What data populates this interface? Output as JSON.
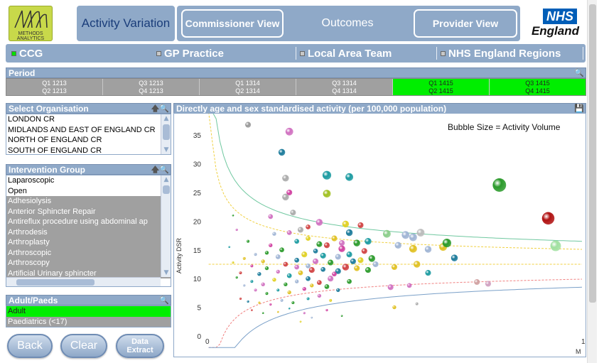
{
  "header": {
    "logo_line1": "METHODS",
    "logo_line2": "ANALYTICS",
    "activity_variation": "Activity Variation",
    "commissioner_view": "Commissioner View",
    "outcomes": "Outcomes",
    "provider_view": "Provider View",
    "nhs": "NHS",
    "england": "England"
  },
  "levels": [
    {
      "label": "CCG",
      "selected": true
    },
    {
      "label": "GP Practice",
      "selected": false
    },
    {
      "label": "Local Area Team",
      "selected": false
    },
    {
      "label": "NHS England Regions",
      "selected": false
    }
  ],
  "period": {
    "title": "Period",
    "cells": [
      {
        "line1": "Q1 1213",
        "line2": "Q2 1213",
        "selected": false
      },
      {
        "line1": "Q3 1213",
        "line2": "Q4 1213",
        "selected": false
      },
      {
        "line1": "Q1 1314",
        "line2": "Q2 1314",
        "selected": false
      },
      {
        "line1": "Q3 1314",
        "line2": "Q4 1314",
        "selected": false
      },
      {
        "line1": "Q1 1415",
        "line2": "Q2 1415",
        "selected": true
      },
      {
        "line1": "Q3 1415",
        "line2": "Q4 1415",
        "selected": true
      }
    ]
  },
  "organisation": {
    "title": "Select Organisation",
    "items": [
      "LONDON CR",
      "MIDLANDS AND EAST OF ENGLAND CR",
      "NORTH OF ENGLAND CR",
      "SOUTH OF ENGLAND CR"
    ]
  },
  "intervention": {
    "title": "Intervention Group",
    "items": [
      {
        "label": "Laparoscopic",
        "state": "white"
      },
      {
        "label": "Open",
        "state": "white"
      },
      {
        "label": "Adhesiolysis",
        "state": "grey"
      },
      {
        "label": "Anterior Sphincter Repair",
        "state": "grey"
      },
      {
        "label": "Antireflux procedure using abdominal ap",
        "state": "grey"
      },
      {
        "label": "Arthrodesis",
        "state": "grey"
      },
      {
        "label": "Arthroplasty",
        "state": "grey"
      },
      {
        "label": "Arthroscopic",
        "state": "grey"
      },
      {
        "label": "Arthroscopy",
        "state": "grey"
      },
      {
        "label": "Artificial Urinary sphincter",
        "state": "grey"
      }
    ]
  },
  "adultpaeds": {
    "title": "Adult/Paeds",
    "items": [
      {
        "label": "Adult",
        "state": "green"
      },
      {
        "label": "Paediatrics (<17)",
        "state": "grey"
      }
    ]
  },
  "buttons": {
    "back": "Back",
    "clear": "Clear",
    "data_extract_1": "Data",
    "data_extract_2": "Extract"
  },
  "chart": {
    "title": "Directly age and sex standardised activity (per 100,000 population)",
    "bubble_note": "Bubble Size = Activity Volume",
    "ylabel": "Activity DSR",
    "x_tick_0": "0",
    "x_tick_end": "1",
    "x_unit": "M"
  },
  "chart_data": {
    "type": "scatter",
    "ylim": [
      0,
      37
    ],
    "yticks": [
      0,
      5,
      10,
      15,
      20,
      25,
      30,
      35
    ],
    "mean": 12.5,
    "points": [
      {
        "x": 0.11,
        "y": 36.8,
        "s": 3,
        "c": "#999999"
      },
      {
        "x": 0.22,
        "y": 35.6,
        "s": 4,
        "c": "#d070c0"
      },
      {
        "x": 0.2,
        "y": 32.0,
        "s": 3.5,
        "c": "#1a7a9a"
      },
      {
        "x": 0.32,
        "y": 28.0,
        "s": 4.5,
        "c": "#1a9aa0"
      },
      {
        "x": 0.38,
        "y": 27.7,
        "s": 4,
        "c": "#1a9aa0"
      },
      {
        "x": 0.21,
        "y": 27.5,
        "s": 3.5,
        "c": "#aaaaaa"
      },
      {
        "x": 0.22,
        "y": 25.0,
        "s": 3,
        "c": "#d040a0"
      },
      {
        "x": 0.21,
        "y": 24.2,
        "s": 3.5,
        "c": "#aaaaaa"
      },
      {
        "x": 0.32,
        "y": 24.8,
        "s": 4,
        "c": "#a0c020"
      },
      {
        "x": 0.78,
        "y": 26.3,
        "s": 7,
        "c": "#2a9a2a"
      },
      {
        "x": 0.91,
        "y": 20.5,
        "s": 6.5,
        "c": "#b01010"
      },
      {
        "x": 0.23,
        "y": 21.5,
        "s": 3,
        "c": "#aaaaaa"
      },
      {
        "x": 0.17,
        "y": 20.8,
        "s": 2.5,
        "c": "#d070c0"
      },
      {
        "x": 0.3,
        "y": 19.8,
        "s": 3.5,
        "c": "#d070c0"
      },
      {
        "x": 0.37,
        "y": 19.5,
        "s": 3.5,
        "c": "#e0d020"
      },
      {
        "x": 0.41,
        "y": 19.3,
        "s": 3,
        "c": "#d04040"
      },
      {
        "x": 0.48,
        "y": 17.8,
        "s": 4,
        "c": "#8acd8a"
      },
      {
        "x": 0.53,
        "y": 17.6,
        "s": 4,
        "c": "#9fb4d4"
      },
      {
        "x": 0.55,
        "y": 17.2,
        "s": 4,
        "c": "#9fb4d4"
      },
      {
        "x": 0.57,
        "y": 18.0,
        "s": 4,
        "c": "#bbbbbb"
      },
      {
        "x": 0.51,
        "y": 15.8,
        "s": 3.5,
        "c": "#9fb4d4"
      },
      {
        "x": 0.55,
        "y": 15.2,
        "s": 4,
        "c": "#e0c020"
      },
      {
        "x": 0.59,
        "y": 15.1,
        "s": 3.5,
        "c": "#9fb4d4"
      },
      {
        "x": 0.63,
        "y": 15.5,
        "s": 4,
        "c": "#e0c020"
      },
      {
        "x": 0.64,
        "y": 16.2,
        "s": 4.5,
        "c": "#2a9a2a"
      },
      {
        "x": 0.66,
        "y": 13.6,
        "s": 3.5,
        "c": "#1a7a9a"
      },
      {
        "x": 0.93,
        "y": 15.7,
        "s": 5.5,
        "c": "#a0e0a0"
      },
      {
        "x": 0.5,
        "y": 12.0,
        "s": 3,
        "c": "#e0c020"
      },
      {
        "x": 0.56,
        "y": 12.5,
        "s": 3.5,
        "c": "#e0c020"
      },
      {
        "x": 0.59,
        "y": 11.0,
        "s": 3,
        "c": "#1a9aa0"
      },
      {
        "x": 0.72,
        "y": 9.4,
        "s": 3,
        "c": "#d0a0a0"
      },
      {
        "x": 0.75,
        "y": 9.1,
        "s": 3,
        "c": "#d0a0c0"
      },
      {
        "x": 0.49,
        "y": 8.5,
        "s": 3,
        "c": "#d070c0"
      },
      {
        "x": 0.54,
        "y": 8.8,
        "s": 2.5,
        "c": "#d070c0"
      },
      {
        "x": 0.5,
        "y": 5.0,
        "s": 2,
        "c": "#e0c020"
      },
      {
        "x": 0.56,
        "y": 5.6,
        "s": 1.5,
        "c": "#aaaaaa"
      },
      {
        "x": 0.38,
        "y": 18.0,
        "s": 3.5,
        "c": "#1a7a9a"
      },
      {
        "x": 0.36,
        "y": 15.2,
        "s": 3.5,
        "c": "#d040a0"
      },
      {
        "x": 0.4,
        "y": 16.2,
        "s": 3.5,
        "c": "#2a9a2a"
      },
      {
        "x": 0.43,
        "y": 16.5,
        "s": 3.5,
        "c": "#1a9aa0"
      },
      {
        "x": 0.42,
        "y": 14.8,
        "s": 3,
        "c": "#d04040"
      },
      {
        "x": 0.44,
        "y": 13.5,
        "s": 3.5,
        "c": "#2a9a2a"
      },
      {
        "x": 0.37,
        "y": 12.0,
        "s": 3.5,
        "c": "#d04040"
      },
      {
        "x": 0.39,
        "y": 13.0,
        "s": 3,
        "c": "#1a7a9a"
      },
      {
        "x": 0.35,
        "y": 11.3,
        "s": 3,
        "c": "#1a7a9a"
      },
      {
        "x": 0.4,
        "y": 11.8,
        "s": 3,
        "c": "#e0c020"
      },
      {
        "x": 0.33,
        "y": 10.0,
        "s": 3,
        "c": "#d070c0"
      },
      {
        "x": 0.3,
        "y": 16.0,
        "s": 3,
        "c": "#2a9a2a"
      },
      {
        "x": 0.27,
        "y": 17.0,
        "s": 2.5,
        "c": "#e0d020"
      },
      {
        "x": 0.25,
        "y": 18.5,
        "s": 3,
        "c": "#aaaaaa"
      },
      {
        "x": 0.27,
        "y": 19.0,
        "s": 2.5,
        "c": "#d04040"
      },
      {
        "x": 0.22,
        "y": 18.0,
        "s": 2.5,
        "c": "#d070c0"
      },
      {
        "x": 0.24,
        "y": 16.5,
        "s": 2.5,
        "c": "#1a9aa0"
      },
      {
        "x": 0.2,
        "y": 15.0,
        "s": 2.5,
        "c": "#2a9a2a"
      },
      {
        "x": 0.18,
        "y": 17.8,
        "s": 2,
        "c": "#9fb4d4"
      },
      {
        "x": 0.17,
        "y": 15.8,
        "s": 2,
        "c": "#d040a0"
      },
      {
        "x": 0.16,
        "y": 14.5,
        "s": 2,
        "c": "#2a9a2a"
      },
      {
        "x": 0.15,
        "y": 13.0,
        "s": 2,
        "c": "#e0c020"
      },
      {
        "x": 0.19,
        "y": 13.8,
        "s": 2.5,
        "c": "#9fb4d4"
      },
      {
        "x": 0.21,
        "y": 12.5,
        "s": 2.5,
        "c": "#d04040"
      },
      {
        "x": 0.24,
        "y": 13.2,
        "s": 2.5,
        "c": "#1a7a9a"
      },
      {
        "x": 0.26,
        "y": 14.2,
        "s": 3,
        "c": "#e0d020"
      },
      {
        "x": 0.29,
        "y": 13.0,
        "s": 3,
        "c": "#d070c0"
      },
      {
        "x": 0.31,
        "y": 14.0,
        "s": 3,
        "c": "#1a9aa0"
      },
      {
        "x": 0.33,
        "y": 12.8,
        "s": 3,
        "c": "#2a9a2a"
      },
      {
        "x": 0.35,
        "y": 13.8,
        "s": 3,
        "c": "#9fb4d4"
      },
      {
        "x": 0.28,
        "y": 11.5,
        "s": 3,
        "c": "#d04040"
      },
      {
        "x": 0.25,
        "y": 11.0,
        "s": 2.5,
        "c": "#e0c020"
      },
      {
        "x": 0.22,
        "y": 10.5,
        "s": 2.5,
        "c": "#1a9aa0"
      },
      {
        "x": 0.19,
        "y": 11.2,
        "s": 2,
        "c": "#d070c0"
      },
      {
        "x": 0.16,
        "y": 11.8,
        "s": 2,
        "c": "#2a9a2a"
      },
      {
        "x": 0.14,
        "y": 10.8,
        "s": 2,
        "c": "#1a7a9a"
      },
      {
        "x": 0.12,
        "y": 12.2,
        "s": 1.5,
        "c": "#d040a0"
      },
      {
        "x": 0.13,
        "y": 14.2,
        "s": 1.5,
        "c": "#9fb4d4"
      },
      {
        "x": 0.11,
        "y": 16.5,
        "s": 1.5,
        "c": "#2a9a2a"
      },
      {
        "x": 0.1,
        "y": 13.5,
        "s": 1.5,
        "c": "#e0c020"
      },
      {
        "x": 0.09,
        "y": 11.0,
        "s": 1.5,
        "c": "#d04040"
      },
      {
        "x": 0.12,
        "y": 9.5,
        "s": 1.5,
        "c": "#1a9aa0"
      },
      {
        "x": 0.15,
        "y": 9.0,
        "s": 2,
        "c": "#d070c0"
      },
      {
        "x": 0.18,
        "y": 9.8,
        "s": 2,
        "c": "#e0d020"
      },
      {
        "x": 0.21,
        "y": 9.0,
        "s": 2,
        "c": "#2a9a2a"
      },
      {
        "x": 0.24,
        "y": 9.5,
        "s": 2,
        "c": "#9fb4d4"
      },
      {
        "x": 0.27,
        "y": 10.0,
        "s": 2.5,
        "c": "#1a7a9a"
      },
      {
        "x": 0.3,
        "y": 9.3,
        "s": 2.5,
        "c": "#d04040"
      },
      {
        "x": 0.26,
        "y": 8.2,
        "s": 2,
        "c": "#d040a0"
      },
      {
        "x": 0.22,
        "y": 7.6,
        "s": 2,
        "c": "#e0c020"
      },
      {
        "x": 0.19,
        "y": 8.0,
        "s": 1.5,
        "c": "#1a9aa0"
      },
      {
        "x": 0.16,
        "y": 7.4,
        "s": 1.5,
        "c": "#2a9a2a"
      },
      {
        "x": 0.13,
        "y": 8.0,
        "s": 1.5,
        "c": "#d070c0"
      },
      {
        "x": 0.1,
        "y": 8.8,
        "s": 1.2,
        "c": "#9fb4d4"
      },
      {
        "x": 0.08,
        "y": 10.2,
        "s": 1.2,
        "c": "#2a9a2a"
      },
      {
        "x": 0.07,
        "y": 12.8,
        "s": 1.2,
        "c": "#e0d020"
      },
      {
        "x": 0.06,
        "y": 15.5,
        "s": 1,
        "c": "#1a9aa0"
      },
      {
        "x": 0.08,
        "y": 18.5,
        "s": 1.2,
        "c": "#d070c0"
      },
      {
        "x": 0.07,
        "y": 21.0,
        "s": 1,
        "c": "#2a9a2a"
      },
      {
        "x": 0.09,
        "y": 6.5,
        "s": 1.2,
        "c": "#d04040"
      },
      {
        "x": 0.11,
        "y": 6.0,
        "s": 1.2,
        "c": "#1a7a9a"
      },
      {
        "x": 0.14,
        "y": 5.8,
        "s": 1.2,
        "c": "#e0c020"
      },
      {
        "x": 0.17,
        "y": 5.5,
        "s": 1.2,
        "c": "#d040a0"
      },
      {
        "x": 0.2,
        "y": 6.2,
        "s": 1.5,
        "c": "#9fb4d4"
      },
      {
        "x": 0.23,
        "y": 5.8,
        "s": 1.5,
        "c": "#2a9a2a"
      },
      {
        "x": 0.27,
        "y": 6.5,
        "s": 1.5,
        "c": "#1a9aa0"
      },
      {
        "x": 0.3,
        "y": 7.0,
        "s": 2,
        "c": "#d070c0"
      },
      {
        "x": 0.33,
        "y": 6.2,
        "s": 1.5,
        "c": "#e0d020"
      },
      {
        "x": 0.35,
        "y": 8.0,
        "s": 2,
        "c": "#1a7a9a"
      },
      {
        "x": 0.38,
        "y": 9.5,
        "s": 2.5,
        "c": "#2a9a2a"
      },
      {
        "x": 0.12,
        "y": 4.5,
        "s": 1,
        "c": "#d04040"
      },
      {
        "x": 0.15,
        "y": 4.0,
        "s": 1,
        "c": "#2a9a2a"
      },
      {
        "x": 0.19,
        "y": 4.2,
        "s": 1,
        "c": "#e0c020"
      },
      {
        "x": 0.22,
        "y": 4.8,
        "s": 1,
        "c": "#1a9aa0"
      },
      {
        "x": 0.26,
        "y": 4.0,
        "s": 1.2,
        "c": "#d070c0"
      },
      {
        "x": 0.28,
        "y": 3.2,
        "s": 1,
        "c": "#9fb4d4"
      },
      {
        "x": 0.32,
        "y": 4.5,
        "s": 1.2,
        "c": "#d040a0"
      },
      {
        "x": 0.25,
        "y": 2.5,
        "s": 1,
        "c": "#e0d020"
      },
      {
        "x": 0.36,
        "y": 3.5,
        "s": 1,
        "c": "#2a9a2a"
      },
      {
        "x": 0.29,
        "y": 14.8,
        "s": 2.5,
        "c": "#1a7a9a"
      },
      {
        "x": 0.32,
        "y": 15.8,
        "s": 3,
        "c": "#d04040"
      },
      {
        "x": 0.34,
        "y": 17.0,
        "s": 3,
        "c": "#e0c020"
      },
      {
        "x": 0.36,
        "y": 16.2,
        "s": 3,
        "c": "#d070c0"
      },
      {
        "x": 0.38,
        "y": 14.2,
        "s": 3,
        "c": "#1a9aa0"
      },
      {
        "x": 0.41,
        "y": 13.2,
        "s": 3,
        "c": "#e0d020"
      },
      {
        "x": 0.45,
        "y": 12.5,
        "s": 3,
        "c": "#9fb4d4"
      },
      {
        "x": 0.43,
        "y": 11.5,
        "s": 3,
        "c": "#2a9a2a"
      },
      {
        "x": 0.34,
        "y": 10.8,
        "s": 2.5,
        "c": "#d040a0"
      },
      {
        "x": 0.31,
        "y": 11.6,
        "s": 2.5,
        "c": "#1a7a9a"
      },
      {
        "x": 0.27,
        "y": 12.2,
        "s": 2.5,
        "c": "#9fb4d4"
      },
      {
        "x": 0.24,
        "y": 12.0,
        "s": 2.5,
        "c": "#d070c0"
      },
      {
        "x": 0.32,
        "y": 8.6,
        "s": 2.5,
        "c": "#2a9a2a"
      },
      {
        "x": 0.28,
        "y": 8.8,
        "s": 2,
        "c": "#e0c020"
      }
    ]
  }
}
